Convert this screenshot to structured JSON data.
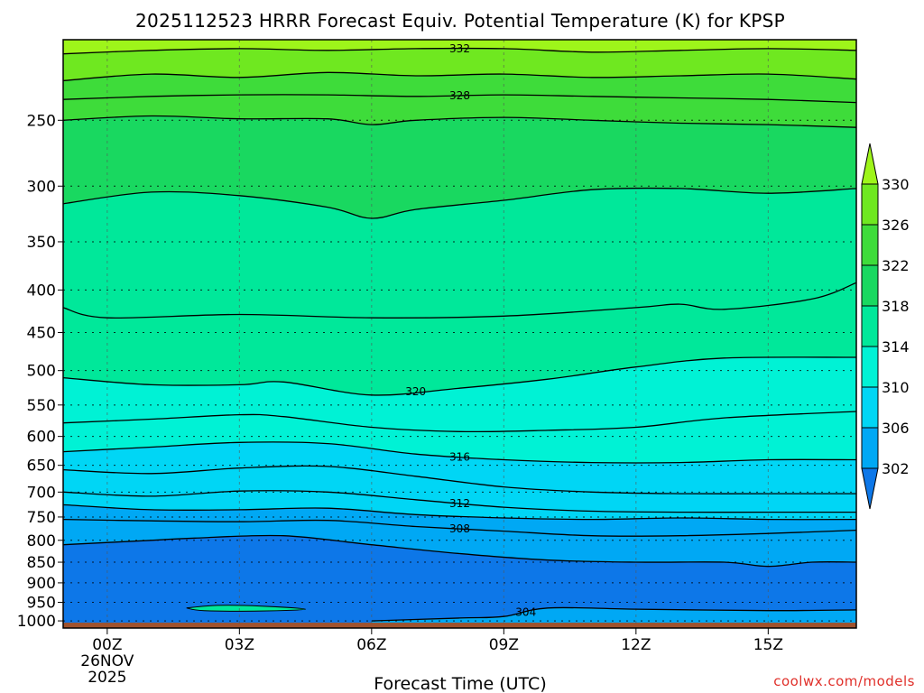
{
  "chart_data": {
    "type": "heatmap",
    "title": "2025112523 HRRR Forecast Equiv. Potential Temperature (K) for KPSP",
    "xlabel": "Forecast Time (UTC)",
    "ylabel": "",
    "credit": "coolwx.com/models",
    "x_ticks": [
      {
        "hour": 0,
        "label": "00Z"
      },
      {
        "hour": 3,
        "label": "03Z"
      },
      {
        "hour": 6,
        "label": "06Z"
      },
      {
        "hour": 9,
        "label": "09Z"
      },
      {
        "hour": 12,
        "label": "12Z"
      },
      {
        "hour": 15,
        "label": "15Z"
      }
    ],
    "x_date_label": [
      "26NOV",
      "2025"
    ],
    "x_range": [
      -1,
      17
    ],
    "y_ticks": [
      250,
      300,
      350,
      400,
      450,
      500,
      550,
      600,
      650,
      700,
      750,
      800,
      850,
      900,
      950,
      1000
    ],
    "y_range_hpa": [
      1020,
      200
    ],
    "y_scale": "log-pressure",
    "colorbar": {
      "labels": [
        302,
        306,
        310,
        314,
        318,
        322,
        326,
        330
      ],
      "colors": [
        "#0d77e8",
        "#00a8f4",
        "#00d6f5",
        "#00f2d5",
        "#00e89a",
        "#19d860",
        "#3edc3a",
        "#6fe820",
        "#9ef51a"
      ]
    },
    "ground_color": "#a0522d",
    "contours": [
      {
        "value": 332,
        "label": "332",
        "points": [
          [
            -1,
            208
          ],
          [
            1,
            206
          ],
          [
            3,
            205
          ],
          [
            5,
            206
          ],
          [
            7,
            205
          ],
          [
            9,
            205
          ],
          [
            11,
            207
          ],
          [
            13,
            206
          ],
          [
            15,
            205
          ],
          [
            17,
            206
          ]
        ]
      },
      {
        "value": 330,
        "label": "",
        "points": [
          [
            -1,
            224
          ],
          [
            1,
            220
          ],
          [
            3,
            222
          ],
          [
            5,
            219
          ],
          [
            7,
            221
          ],
          [
            9,
            220
          ],
          [
            11,
            222
          ],
          [
            13,
            221
          ],
          [
            15,
            220
          ],
          [
            17,
            223
          ]
        ]
      },
      {
        "value": 328,
        "label": "328",
        "points": [
          [
            -1,
            236
          ],
          [
            1,
            234
          ],
          [
            3,
            233
          ],
          [
            5,
            233
          ],
          [
            7,
            234
          ],
          [
            9,
            233
          ],
          [
            11,
            234
          ],
          [
            13,
            235
          ],
          [
            15,
            236
          ],
          [
            17,
            238
          ]
        ]
      },
      {
        "value": 326,
        "label": "",
        "points": [
          [
            -1,
            250
          ],
          [
            1,
            247
          ],
          [
            3,
            249
          ],
          [
            5,
            249
          ],
          [
            6,
            253
          ],
          [
            7,
            250
          ],
          [
            9,
            248
          ],
          [
            11,
            250
          ],
          [
            13,
            252
          ],
          [
            15,
            253
          ],
          [
            17,
            255
          ]
        ]
      },
      {
        "value": 324,
        "label": "",
        "points": [
          [
            -1,
            315
          ],
          [
            1,
            305
          ],
          [
            3,
            308
          ],
          [
            5,
            318
          ],
          [
            6,
            328
          ],
          [
            7,
            320
          ],
          [
            9,
            312
          ],
          [
            11,
            303
          ],
          [
            13,
            302
          ],
          [
            15,
            306
          ],
          [
            17,
            302
          ]
        ]
      },
      {
        "value": 322,
        "label": "",
        "points": [
          [
            -1,
            420
          ],
          [
            0,
            432
          ],
          [
            3,
            428
          ],
          [
            6,
            432
          ],
          [
            9,
            430
          ],
          [
            12,
            420
          ],
          [
            13,
            416
          ],
          [
            14,
            422
          ],
          [
            16,
            410
          ],
          [
            17,
            392
          ]
        ]
      },
      {
        "value": 320,
        "label": "320",
        "points": [
          [
            -1,
            510
          ],
          [
            1,
            520
          ],
          [
            3,
            520
          ],
          [
            4,
            516
          ],
          [
            6,
            535
          ],
          [
            8,
            525
          ],
          [
            10,
            512
          ],
          [
            12,
            495
          ],
          [
            14,
            483
          ],
          [
            17,
            482
          ]
        ]
      },
      {
        "value": 318,
        "label": "",
        "points": [
          [
            -1,
            578
          ],
          [
            1,
            572
          ],
          [
            3,
            565
          ],
          [
            4,
            568
          ],
          [
            6,
            585
          ],
          [
            8,
            592
          ],
          [
            10,
            590
          ],
          [
            12,
            585
          ],
          [
            14,
            570
          ],
          [
            17,
            560
          ]
        ]
      },
      {
        "value": 316,
        "label": "316",
        "points": [
          [
            -1,
            626
          ],
          [
            1,
            618
          ],
          [
            3,
            610
          ],
          [
            5,
            612
          ],
          [
            7,
            630
          ],
          [
            9,
            640
          ],
          [
            11,
            645
          ],
          [
            13,
            645
          ],
          [
            15,
            640
          ],
          [
            17,
            640
          ]
        ]
      },
      {
        "value": 314,
        "label": "",
        "points": [
          [
            -1,
            658
          ],
          [
            1,
            665
          ],
          [
            3,
            655
          ],
          [
            5,
            652
          ],
          [
            7,
            670
          ],
          [
            9,
            690
          ],
          [
            11,
            700
          ],
          [
            13,
            703
          ],
          [
            15,
            703
          ],
          [
            17,
            703
          ]
        ]
      },
      {
        "value": 312,
        "label": "312",
        "points": [
          [
            -1,
            700
          ],
          [
            1,
            708
          ],
          [
            3,
            698
          ],
          [
            5,
            700
          ],
          [
            7,
            715
          ],
          [
            9,
            730
          ],
          [
            11,
            738
          ],
          [
            13,
            740
          ],
          [
            15,
            740
          ],
          [
            17,
            740
          ]
        ]
      },
      {
        "value": 310,
        "label": "",
        "points": [
          [
            -1,
            725
          ],
          [
            1,
            735
          ],
          [
            3,
            735
          ],
          [
            5,
            732
          ],
          [
            7,
            745
          ],
          [
            9,
            752
          ],
          [
            11,
            755
          ],
          [
            13,
            752
          ],
          [
            15,
            755
          ],
          [
            17,
            755
          ]
        ]
      },
      {
        "value": 308,
        "label": "308",
        "points": [
          [
            -1,
            755
          ],
          [
            1,
            758
          ],
          [
            3,
            760
          ],
          [
            5,
            757
          ],
          [
            7,
            770
          ],
          [
            9,
            780
          ],
          [
            11,
            790
          ],
          [
            13,
            790
          ],
          [
            15,
            785
          ],
          [
            17,
            778
          ]
        ]
      },
      {
        "value": 306,
        "label": "",
        "points": [
          [
            -1,
            810
          ],
          [
            1,
            800
          ],
          [
            2,
            795
          ],
          [
            4,
            790
          ],
          [
            6,
            810
          ],
          [
            8,
            830
          ],
          [
            10,
            845
          ],
          [
            12,
            850
          ],
          [
            14,
            850
          ],
          [
            15,
            860
          ],
          [
            16,
            850
          ],
          [
            17,
            850
          ]
        ]
      },
      {
        "value": 304,
        "label": "304",
        "points": [
          [
            6,
            1000
          ],
          [
            8,
            992
          ],
          [
            9,
            988
          ],
          [
            10,
            965
          ],
          [
            12,
            968
          ],
          [
            15,
            972
          ],
          [
            17,
            970
          ]
        ]
      }
    ],
    "fills": [
      {
        "color": "#9ef51a",
        "level": 330
      },
      {
        "color": "#6fe820",
        "level": 328
      },
      {
        "color": "#3edc3a",
        "level": 326
      },
      {
        "color": "#19d860",
        "level": 324
      },
      {
        "color": "#00e89a",
        "level": 322
      },
      {
        "color": "#00f2d5",
        "level": 318
      },
      {
        "color": "#00d6f5",
        "level": 314
      },
      {
        "color": "#00a8f4",
        "level": 308
      },
      {
        "color": "#0d77e8",
        "level": 304
      }
    ]
  }
}
